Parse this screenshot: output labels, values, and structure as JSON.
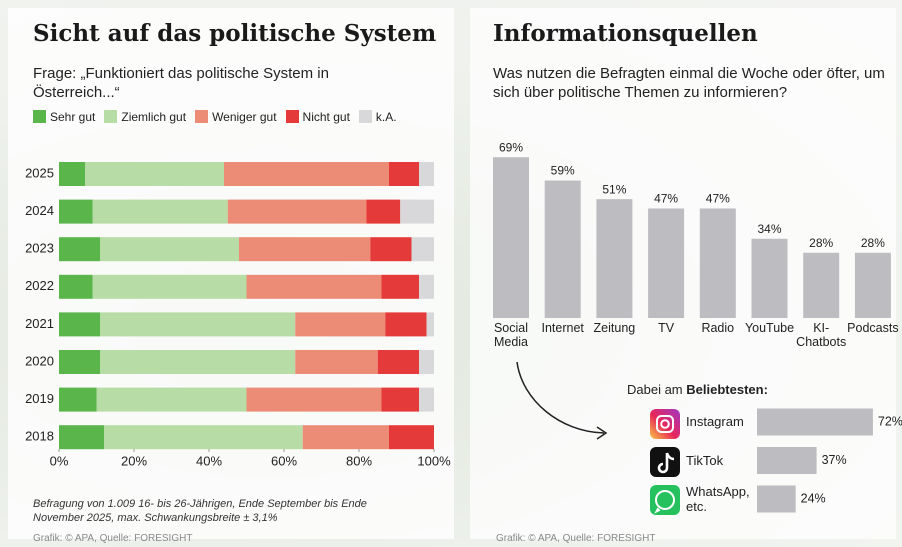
{
  "chart_data": [
    {
      "type": "bar",
      "orientation": "horizontal",
      "stacked": true,
      "title": "Sicht auf das politische System",
      "subtitle": "Frage: „Funktioniert das politische System in Österreich...“",
      "categories": [
        "2025",
        "2024",
        "2023",
        "2022",
        "2021",
        "2020",
        "2019",
        "2018"
      ],
      "series": [
        {
          "name": "Sehr gut",
          "color": "#5ab54b",
          "values": [
            7,
            9,
            11,
            9,
            11,
            11,
            10,
            12
          ]
        },
        {
          "name": "Ziemlich gut",
          "color": "#b8dca6",
          "values": [
            37,
            36,
            37,
            41,
            52,
            52,
            40,
            53
          ]
        },
        {
          "name": "Weniger gut",
          "color": "#ec8b76",
          "values": [
            44,
            37,
            35,
            36,
            24,
            22,
            36,
            23
          ]
        },
        {
          "name": "Nicht gut",
          "color": "#e53a3a",
          "values": [
            8,
            9,
            11,
            10,
            11,
            11,
            10,
            12
          ]
        },
        {
          "name": "k.A.",
          "color": "#d8d8da",
          "values": [
            4,
            9,
            6,
            4,
            2,
            4,
            4,
            0
          ]
        }
      ],
      "xlim": [
        0,
        100
      ],
      "xticks": [
        {
          "value": 0,
          "label": "0%"
        },
        {
          "value": 20,
          "label": "20%"
        },
        {
          "value": 40,
          "label": "40%"
        },
        {
          "value": 60,
          "label": "60%"
        },
        {
          "value": 80,
          "label": "80%"
        },
        {
          "value": 100,
          "label": "100%"
        }
      ],
      "grid": false,
      "note": "Befragung von 1.009 16- bis 26-Jährigen, Ende September bis Ende November 2025, max. Schwankungsbreite ± 3,1%",
      "source": "Grafik: © APA, Quelle: FORESIGHT"
    },
    {
      "type": "bar",
      "orientation": "vertical",
      "title": "Informationsquellen",
      "subtitle": "Was nutzen die Befragten einmal die Woche oder öfter, um sich über politische Themen zu informieren?",
      "categories": [
        "Social Media",
        "Internet",
        "Zeitung",
        "TV",
        "Radio",
        "YouTube",
        "KI-Chatbots",
        "Podcasts"
      ],
      "values": [
        69,
        59,
        51,
        47,
        47,
        34,
        28,
        28
      ],
      "value_labels": [
        "69%",
        "59%",
        "51%",
        "47%",
        "47%",
        "34%",
        "28%",
        "28%"
      ],
      "color": "#bdbcc0",
      "source": "Grafik: © APA, Quelle: FORESIGHT"
    },
    {
      "type": "bar",
      "orientation": "horizontal",
      "title_intro": "Dabei am",
      "title_highlight": "Beliebtesten:",
      "categories": [
        "Instagram",
        "TikTok",
        "WhatsApp, etc."
      ],
      "values": [
        72,
        37,
        24
      ],
      "value_labels": [
        "72%",
        "37%",
        "24%"
      ],
      "color": "#bdbcc0"
    }
  ]
}
